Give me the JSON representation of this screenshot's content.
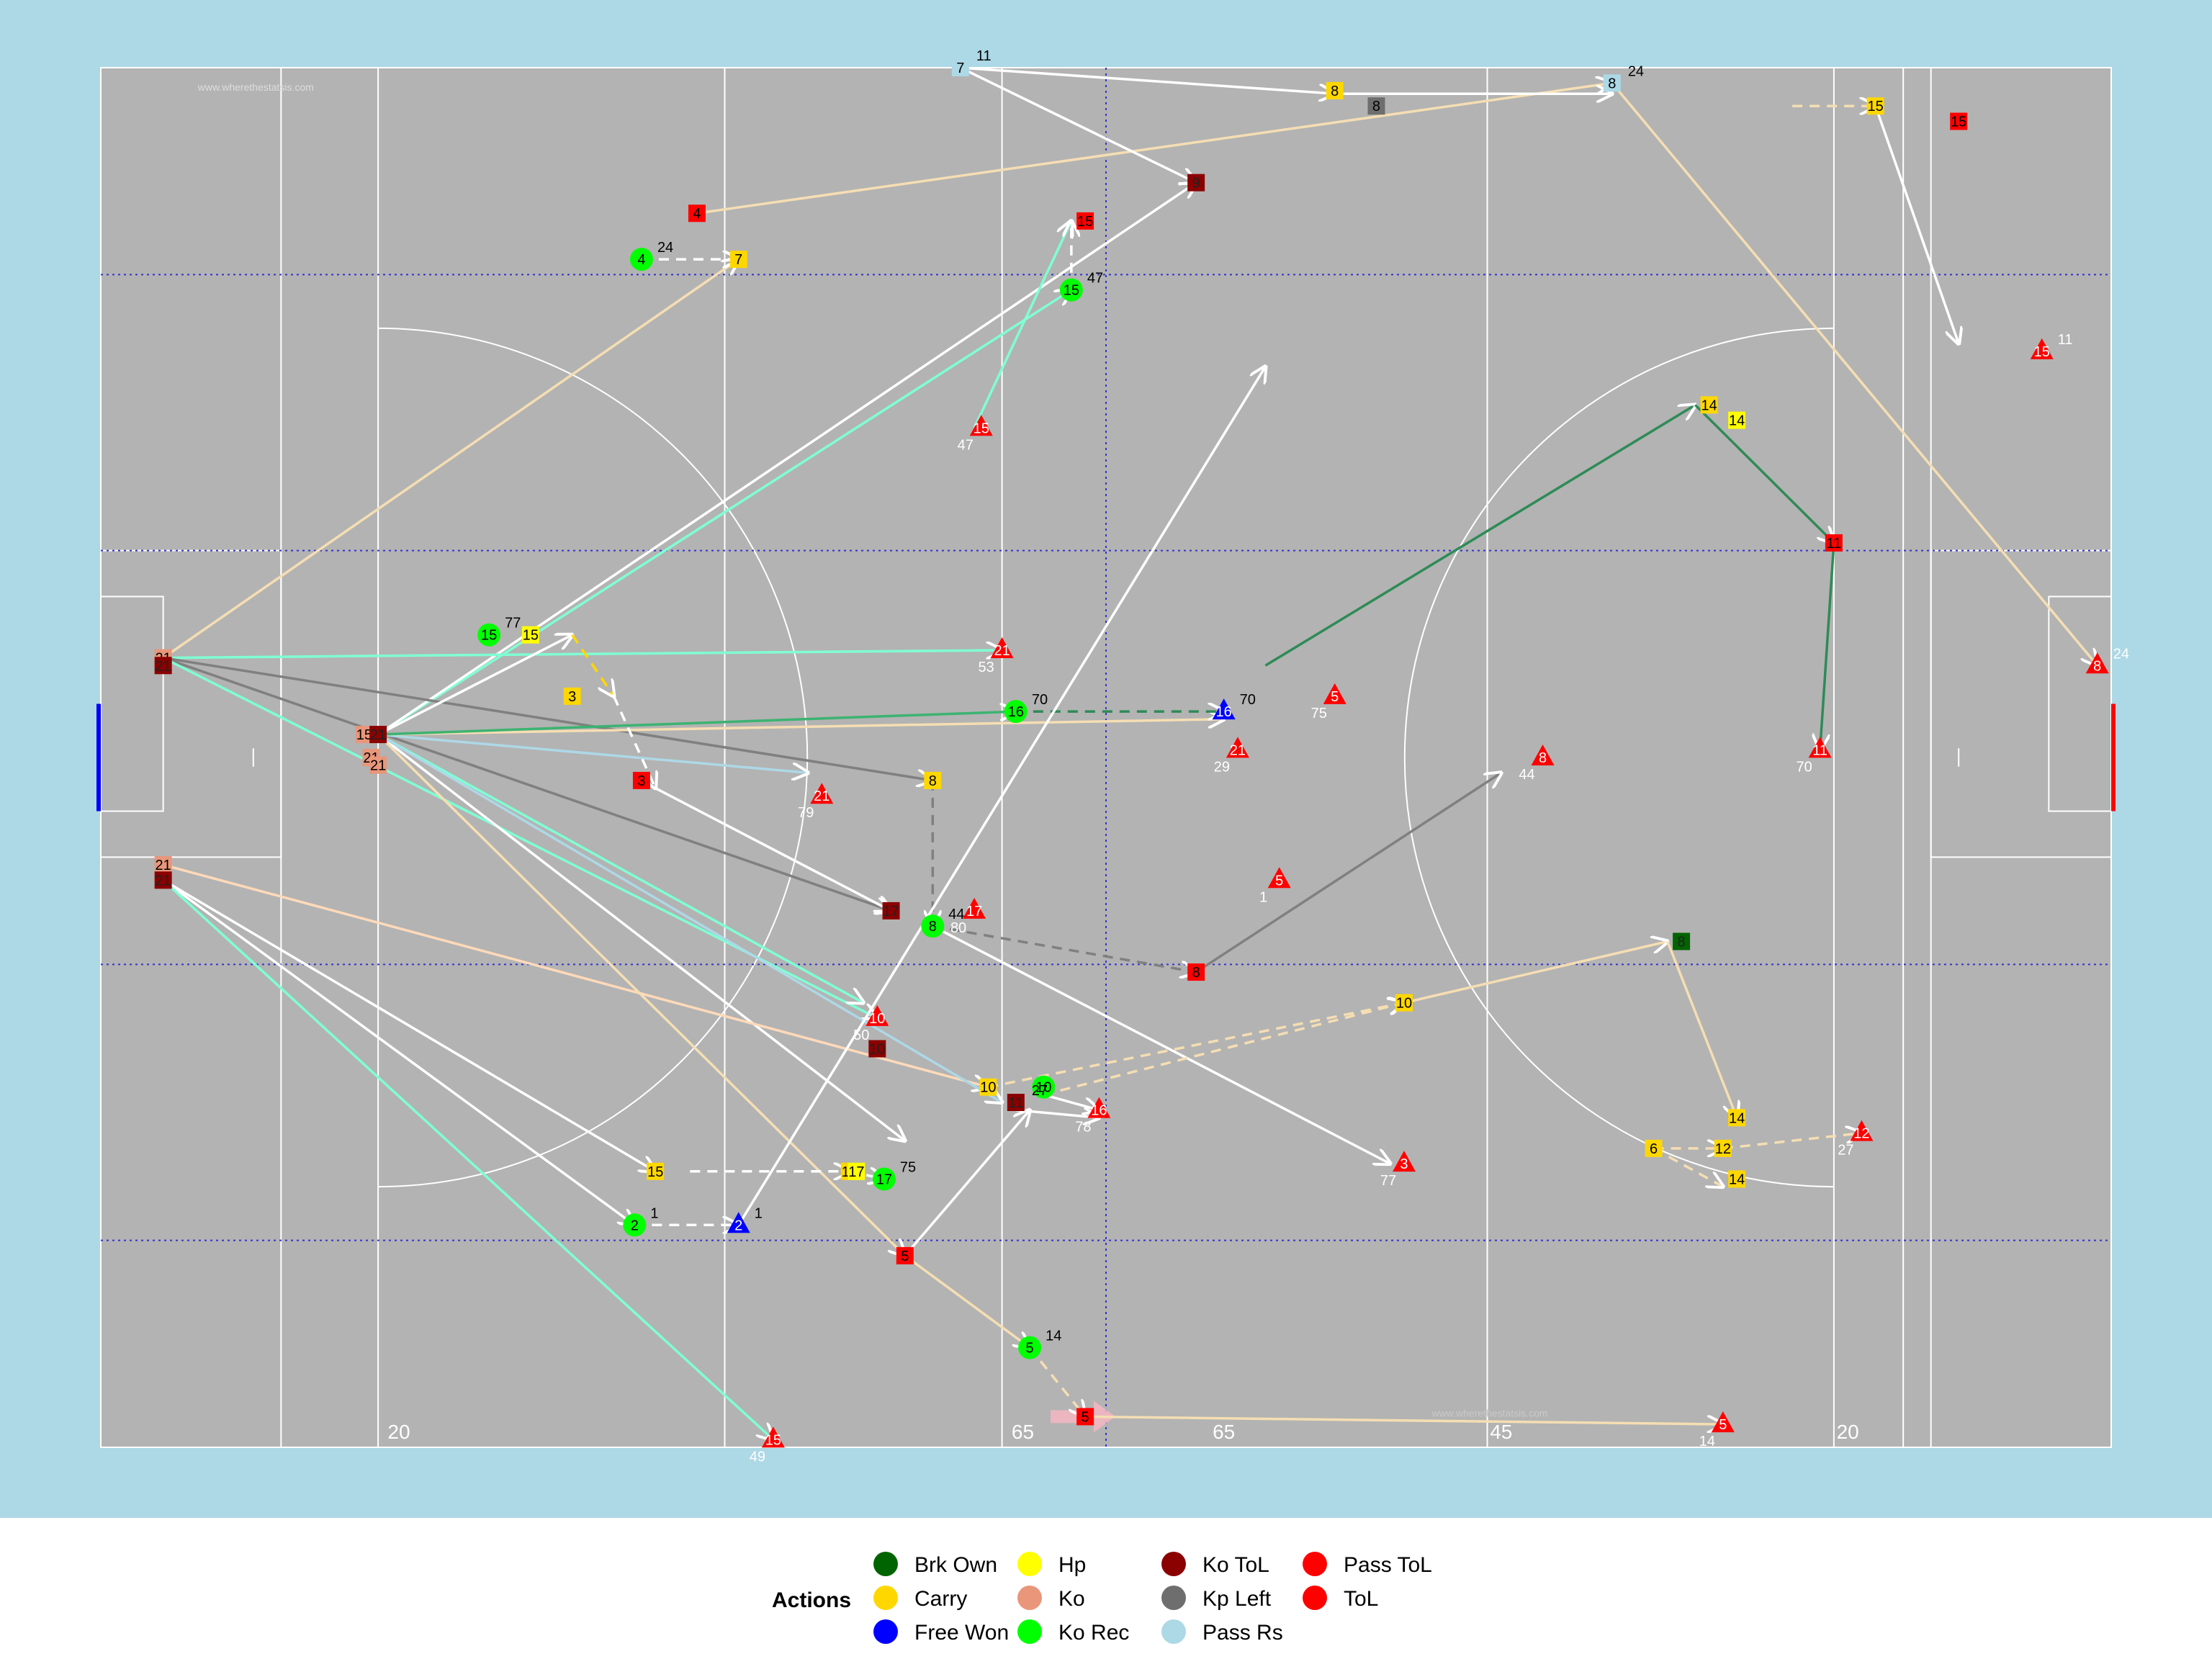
{
  "page": {
    "background": "#ffffff",
    "outer_panel_color": "#add8e6",
    "pitch_color": "#b3b3b3",
    "pitch_line_color": "#ffffff",
    "guide_line_color": "#3333cc",
    "left_goal_color": "#0000ff",
    "right_goal_color": "#ff0000",
    "attack_arrow_color": "#f4b6c2"
  },
  "watermarks": [
    "www.wherethestatsis.com",
    "www.wherethestatsis.com"
  ],
  "chart_data": {
    "type": "scatter",
    "title": "",
    "xlabel": "",
    "ylabel": "",
    "xlim": [
      0,
      145
    ],
    "ylim": [
      0,
      90
    ],
    "direction_of_play": "right",
    "pitch_distance_labels": [
      {
        "x": 21.5,
        "text": "20"
      },
      {
        "x": 66.5,
        "text": "65"
      },
      {
        "x": 81.0,
        "text": "65"
      },
      {
        "x": 101.0,
        "text": "45"
      },
      {
        "x": 126.0,
        "text": "20"
      }
    ],
    "legend": {
      "title": "Actions",
      "position": "bottom",
      "entries": [
        {
          "label": "Brk Own",
          "color": "#006400"
        },
        {
          "label": "Carry",
          "color": "#ffd700"
        },
        {
          "label": "Free Won",
          "color": "#0000ff"
        },
        {
          "label": "Hp",
          "color": "#ffff00"
        },
        {
          "label": "Ko",
          "color": "#e9967a"
        },
        {
          "label": "Ko Rec",
          "color": "#00ff00"
        },
        {
          "label": "Ko ToL",
          "color": "#8b0000"
        },
        {
          "label": "Kp Left",
          "color": "#6e6e6e"
        },
        {
          "label": "Pass Rs",
          "color": "#add8e6"
        },
        {
          "label": "Pass ToL",
          "color": "#ff0000"
        },
        {
          "label": "ToL",
          "color": "#ff0000"
        }
      ]
    },
    "segments": [
      {
        "x1": 4.5,
        "y1": 51.5,
        "x2": 46,
        "y2": 77.5,
        "color": "#f5deb3",
        "dash": false
      },
      {
        "x1": 43,
        "y1": 80.5,
        "x2": 109,
        "y2": 89,
        "color": "#f5deb3",
        "dash": false
      },
      {
        "x1": 62,
        "y1": 90,
        "x2": 89,
        "y2": 88.3,
        "color": "#ffffff",
        "dash": false
      },
      {
        "x1": 62,
        "y1": 90,
        "x2": 79,
        "y2": 82.5,
        "color": "#ffffff",
        "dash": false
      },
      {
        "x1": 89,
        "y1": 88.3,
        "x2": 109,
        "y2": 88.3,
        "color": "#ffffff",
        "dash": false
      },
      {
        "x1": 109,
        "y1": 89,
        "x2": 144,
        "y2": 51,
        "color": "#f5deb3",
        "dash": false
      },
      {
        "x1": 128,
        "y1": 87.5,
        "x2": 134,
        "y2": 72,
        "color": "#ffffff",
        "dash": false
      },
      {
        "x1": 122,
        "y1": 87.5,
        "x2": 128,
        "y2": 87.5,
        "color": "#f5deb3",
        "dash": true
      },
      {
        "x1": 39,
        "y1": 77.5,
        "x2": 46,
        "y2": 77.5,
        "color": "#ffffff",
        "dash": true
      },
      {
        "x1": 20,
        "y1": 46.5,
        "x2": 70,
        "y2": 75.5,
        "color": "#7fffd4",
        "dash": false
      },
      {
        "x1": 20,
        "y1": 46.5,
        "x2": 79,
        "y2": 82.5,
        "color": "#ffffff",
        "dash": false
      },
      {
        "x1": 63,
        "y1": 66.5,
        "x2": 70,
        "y2": 80,
        "color": "#7fffd4",
        "dash": false
      },
      {
        "x1": 70,
        "y1": 75.5,
        "x2": 70,
        "y2": 80,
        "color": "#ffffff",
        "dash": true
      },
      {
        "x1": 4.5,
        "y1": 51.5,
        "x2": 65,
        "y2": 52,
        "color": "#7fffd4",
        "dash": false
      },
      {
        "x1": 4.5,
        "y1": 51.5,
        "x2": 60,
        "y2": 43.5,
        "color": "#808080",
        "dash": false
      },
      {
        "x1": 4.5,
        "y1": 51.5,
        "x2": 57,
        "y2": 35,
        "color": "#808080",
        "dash": false
      },
      {
        "x1": 4.5,
        "y1": 51.5,
        "x2": 56,
        "y2": 28,
        "color": "#7fffd4",
        "dash": false
      },
      {
        "x1": 20,
        "y1": 46.5,
        "x2": 51,
        "y2": 44,
        "color": "#add8e6",
        "dash": false
      },
      {
        "x1": 20,
        "y1": 46.5,
        "x2": 34,
        "y2": 53,
        "color": "#ffffff",
        "dash": false
      },
      {
        "x1": 20,
        "y1": 46.5,
        "x2": 58,
        "y2": 20,
        "color": "#ffffff",
        "dash": false
      },
      {
        "x1": 20,
        "y1": 46.5,
        "x2": 81,
        "y2": 47.5,
        "color": "#f5deb3",
        "dash": false
      },
      {
        "x1": 20,
        "y1": 46.5,
        "x2": 66,
        "y2": 48,
        "color": "#3cb371",
        "dash": false
      },
      {
        "x1": 66,
        "y1": 48,
        "x2": 81,
        "y2": 48,
        "color": "#2e8b57",
        "dash": true
      },
      {
        "x1": 84,
        "y1": 51,
        "x2": 115,
        "y2": 68,
        "color": "#2e8b57",
        "dash": false
      },
      {
        "x1": 115,
        "y1": 68,
        "x2": 125,
        "y2": 59,
        "color": "#2e8b57",
        "dash": false
      },
      {
        "x1": 125,
        "y1": 59,
        "x2": 124,
        "y2": 45.5,
        "color": "#2e8b57",
        "dash": false
      },
      {
        "x1": 34,
        "y1": 53,
        "x2": 37,
        "y2": 49,
        "color": "#ffd700",
        "dash": true
      },
      {
        "x1": 37,
        "y1": 49,
        "x2": 40,
        "y2": 43,
        "color": "#ffffff",
        "dash": true
      },
      {
        "x1": 40,
        "y1": 43,
        "x2": 57,
        "y2": 35,
        "color": "#ffffff",
        "dash": false
      },
      {
        "x1": 60,
        "y1": 43.5,
        "x2": 60,
        "y2": 34,
        "color": "#808080",
        "dash": true
      },
      {
        "x1": 60,
        "y1": 34,
        "x2": 79,
        "y2": 31,
        "color": "#808080",
        "dash": true
      },
      {
        "x1": 79,
        "y1": 31,
        "x2": 101,
        "y2": 44,
        "color": "#808080",
        "dash": false
      },
      {
        "x1": 60,
        "y1": 34,
        "x2": 93,
        "y2": 18.5,
        "color": "#ffffff",
        "dash": false
      },
      {
        "x1": 4.5,
        "y1": 38,
        "x2": 64,
        "y2": 23.5,
        "color": "#ffdab9",
        "dash": false
      },
      {
        "x1": 4.5,
        "y1": 37,
        "x2": 40,
        "y2": 18,
        "color": "#ffffff",
        "dash": false
      },
      {
        "x1": 4.5,
        "y1": 37,
        "x2": 38.5,
        "y2": 14.5,
        "color": "#ffffff",
        "dash": false
      },
      {
        "x1": 4.5,
        "y1": 37,
        "x2": 48.5,
        "y2": 0.5,
        "color": "#7fffd4",
        "dash": false
      },
      {
        "x1": 20,
        "y1": 46.5,
        "x2": 55,
        "y2": 29,
        "color": "#7fffd4",
        "dash": false
      },
      {
        "x1": 20,
        "y1": 46.5,
        "x2": 65,
        "y2": 22.5,
        "color": "#add8e6",
        "dash": false
      },
      {
        "x1": 20,
        "y1": 46.5,
        "x2": 58,
        "y2": 12.5,
        "color": "#f5deb3",
        "dash": false
      },
      {
        "x1": 58,
        "y1": 12.5,
        "x2": 67,
        "y2": 6.5,
        "color": "#f5deb3",
        "dash": false
      },
      {
        "x1": 67,
        "y1": 6.5,
        "x2": 71,
        "y2": 2,
        "color": "#f5deb3",
        "dash": true
      },
      {
        "x1": 71,
        "y1": 2,
        "x2": 117,
        "y2": 1.5,
        "color": "#f5deb3",
        "dash": false
      },
      {
        "x1": 64,
        "y1": 23.5,
        "x2": 94,
        "y2": 29,
        "color": "#f5deb3",
        "dash": true
      },
      {
        "x1": 94,
        "y1": 29,
        "x2": 113,
        "y2": 33,
        "color": "#f5deb3",
        "dash": false
      },
      {
        "x1": 113,
        "y1": 33,
        "x2": 118,
        "y2": 21.5,
        "color": "#f5deb3",
        "dash": false
      },
      {
        "x1": 42.5,
        "y1": 18,
        "x2": 54,
        "y2": 18,
        "color": "#ffffff",
        "dash": true
      },
      {
        "x1": 54,
        "y1": 18,
        "x2": 56.5,
        "y2": 17.5,
        "color": "#ffffff",
        "dash": true
      },
      {
        "x1": 38.5,
        "y1": 14.5,
        "x2": 46,
        "y2": 14.5,
        "color": "#ffffff",
        "dash": true
      },
      {
        "x1": 46,
        "y1": 14.5,
        "x2": 84,
        "y2": 70.5,
        "color": "#ffffff",
        "dash": false
      },
      {
        "x1": 58,
        "y1": 12.5,
        "x2": 67,
        "y2": 22,
        "color": "#ffffff",
        "dash": false
      },
      {
        "x1": 66,
        "y1": 22,
        "x2": 72,
        "y2": 21.5,
        "color": "#ffffff",
        "dash": false
      },
      {
        "x1": 68,
        "y1": 23,
        "x2": 94,
        "y2": 29,
        "color": "#f5deb3",
        "dash": true
      },
      {
        "x1": 112,
        "y1": 19.5,
        "x2": 117,
        "y2": 19.5,
        "color": "#f5deb3",
        "dash": true
      },
      {
        "x1": 112,
        "y1": 19.5,
        "x2": 117,
        "y2": 17,
        "color": "#f5deb3",
        "dash": true
      },
      {
        "x1": 117,
        "y1": 19.5,
        "x2": 127,
        "y2": 20.5,
        "color": "#f5deb3",
        "dash": true
      },
      {
        "x1": 68,
        "y1": 23,
        "x2": 72,
        "y2": 22,
        "color": "#ffffff",
        "dash": false
      }
    ],
    "points": [
      {
        "x": 62,
        "y": 90,
        "action": "Pass Rs",
        "num": "7",
        "label": "11",
        "lc": "#000000",
        "shape": "sq"
      },
      {
        "x": 89,
        "y": 88.5,
        "action": "Carry",
        "num": "8",
        "shape": "sq"
      },
      {
        "x": 92,
        "y": 87.5,
        "action": "Kp Left",
        "num": "8",
        "shape": "sq"
      },
      {
        "x": 109,
        "y": 89,
        "action": "Pass Rs",
        "num": "8",
        "label": "24",
        "lc": "#000000",
        "shape": "sq"
      },
      {
        "x": 128,
        "y": 87.5,
        "action": "Carry",
        "num": "15",
        "shape": "sq"
      },
      {
        "x": 134,
        "y": 86.5,
        "action": "Pass ToL",
        "num": "15",
        "shape": "sq"
      },
      {
        "x": 79,
        "y": 82.5,
        "action": "Ko ToL",
        "num": "9",
        "shape": "sq"
      },
      {
        "x": 43,
        "y": 80.5,
        "action": "Pass ToL",
        "num": "4",
        "shape": "sq"
      },
      {
        "x": 71,
        "y": 80,
        "action": "Pass ToL",
        "num": "15",
        "shape": "sq"
      },
      {
        "x": 39,
        "y": 77.5,
        "action": "Ko Rec",
        "num": "4",
        "label": "24",
        "lc": "#000000",
        "shape": "circ"
      },
      {
        "x": 46,
        "y": 77.5,
        "action": "Carry",
        "num": "7",
        "shape": "sq"
      },
      {
        "x": 70,
        "y": 75.5,
        "action": "Ko Rec",
        "num": "15",
        "label": "47",
        "lc": "#000000",
        "shape": "circ"
      },
      {
        "x": 140,
        "y": 71.5,
        "action": "ToL",
        "num": "15",
        "label": "11",
        "lc": "#ffffff",
        "shape": "tri"
      },
      {
        "x": 63.5,
        "y": 66.5,
        "action": "ToL",
        "num": "15",
        "label": "47",
        "lc": "#ffffff",
        "shape": "tri"
      },
      {
        "x": 116,
        "y": 68,
        "action": "Carry",
        "num": "14",
        "shape": "sq"
      },
      {
        "x": 118,
        "y": 67,
        "action": "Hp",
        "num": "14",
        "shape": "sq"
      },
      {
        "x": 125,
        "y": 59,
        "action": "Pass ToL",
        "num": "11",
        "shape": "sq"
      },
      {
        "x": 28,
        "y": 53,
        "action": "Ko Rec",
        "num": "15",
        "label": "77",
        "lc": "#000000",
        "shape": "circ"
      },
      {
        "x": 31,
        "y": 53,
        "action": "Hp",
        "num": "15",
        "shape": "sq"
      },
      {
        "x": 4.5,
        "y": 51.5,
        "action": "Ko",
        "num": "21",
        "shape": "sq"
      },
      {
        "x": 4.5,
        "y": 51.0,
        "action": "Ko ToL",
        "num": "21",
        "shape": "sq"
      },
      {
        "x": 65,
        "y": 52,
        "action": "ToL",
        "num": "21",
        "label": "53",
        "lc": "#ffffff",
        "shape": "tri"
      },
      {
        "x": 34,
        "y": 49,
        "action": "Carry",
        "num": "3",
        "shape": "sq"
      },
      {
        "x": 144,
        "y": 51,
        "action": "ToL",
        "num": "8",
        "label": "24",
        "lc": "#ffffff",
        "shape": "tri"
      },
      {
        "x": 89,
        "y": 49,
        "action": "ToL",
        "num": "5",
        "label": "75",
        "lc": "#ffffff",
        "shape": "tri"
      },
      {
        "x": 124,
        "y": 45.5,
        "action": "ToL",
        "num": "11",
        "label": "70",
        "lc": "#ffffff",
        "shape": "tri"
      },
      {
        "x": 19,
        "y": 46.5,
        "action": "Ko",
        "num": "15",
        "shape": "sq"
      },
      {
        "x": 20,
        "y": 46.5,
        "action": "Ko ToL",
        "num": "21",
        "shape": "sq"
      },
      {
        "x": 19.5,
        "y": 45,
        "action": "Ko",
        "num": "21",
        "shape": "sq"
      },
      {
        "x": 20,
        "y": 44.5,
        "action": "Ko",
        "num": "21",
        "shape": "sq"
      },
      {
        "x": 66,
        "y": 48,
        "action": "Ko Rec",
        "num": "16",
        "label": "70",
        "lc": "#000000",
        "shape": "circ"
      },
      {
        "x": 81,
        "y": 48,
        "action": "Free Won",
        "num": "16",
        "label": "70",
        "lc": "#000000",
        "shape": "tri"
      },
      {
        "x": 82,
        "y": 45.5,
        "action": "ToL",
        "num": "21",
        "label": "29",
        "lc": "#ffffff",
        "shape": "tri"
      },
      {
        "x": 39,
        "y": 43.5,
        "action": "Pass ToL",
        "num": "3",
        "shape": "sq"
      },
      {
        "x": 60,
        "y": 43.5,
        "action": "Carry",
        "num": "8",
        "shape": "sq"
      },
      {
        "x": 52,
        "y": 42.5,
        "action": "ToL",
        "num": "21",
        "label": "79",
        "lc": "#ffffff",
        "shape": "tri"
      },
      {
        "x": 104,
        "y": 45,
        "action": "ToL",
        "num": "8",
        "label": "44",
        "lc": "#ffffff",
        "shape": "tri"
      },
      {
        "x": 4.5,
        "y": 38,
        "action": "Ko",
        "num": "21",
        "shape": "sq"
      },
      {
        "x": 4.5,
        "y": 37,
        "action": "Ko ToL",
        "num": "21",
        "shape": "sq"
      },
      {
        "x": 85,
        "y": 37,
        "action": "ToL",
        "num": "5",
        "label": "1",
        "lc": "#ffffff",
        "shape": "tri"
      },
      {
        "x": 57,
        "y": 35,
        "action": "Ko ToL",
        "num": "17",
        "shape": "sq"
      },
      {
        "x": 60,
        "y": 34,
        "action": "Ko Rec",
        "num": "8",
        "label": "44",
        "lc": "#000000",
        "shape": "circ"
      },
      {
        "x": 63,
        "y": 35,
        "action": "ToL",
        "num": "17",
        "label": "80",
        "lc": "#ffffff",
        "shape": "tri"
      },
      {
        "x": 79,
        "y": 31,
        "action": "Pass ToL",
        "num": "8",
        "shape": "sq"
      },
      {
        "x": 114,
        "y": 33,
        "action": "Brk Own",
        "num": "8",
        "shape": "sq"
      },
      {
        "x": 56,
        "y": 28,
        "action": "ToL",
        "num": "10",
        "label": "50",
        "lc": "#ffffff",
        "shape": "tri"
      },
      {
        "x": 56,
        "y": 26,
        "action": "Ko ToL",
        "num": "10",
        "shape": "sq"
      },
      {
        "x": 94,
        "y": 29,
        "action": "Carry",
        "num": "10",
        "shape": "sq"
      },
      {
        "x": 64,
        "y": 23.5,
        "action": "Carry",
        "num": "10",
        "shape": "sq"
      },
      {
        "x": 68,
        "y": 23.5,
        "action": "Ko Rec",
        "num": "10",
        "shape": "circ"
      },
      {
        "x": 66,
        "y": 22.5,
        "action": "Ko ToL",
        "num": "11",
        "label": "27",
        "lc": "#000000",
        "shape": "sq"
      },
      {
        "x": 72,
        "y": 22,
        "action": "ToL",
        "num": "16",
        "label": "78",
        "lc": "#ffffff",
        "shape": "tri"
      },
      {
        "x": 118,
        "y": 21.5,
        "action": "Carry",
        "num": "14",
        "shape": "sq"
      },
      {
        "x": 112,
        "y": 19.5,
        "action": "Carry",
        "num": "6",
        "shape": "sq"
      },
      {
        "x": 117,
        "y": 19.5,
        "action": "Carry",
        "num": "12",
        "shape": "sq"
      },
      {
        "x": 118,
        "y": 17.5,
        "action": "Carry",
        "num": "14",
        "shape": "sq"
      },
      {
        "x": 127,
        "y": 20.5,
        "action": "ToL",
        "num": "12",
        "label": "27",
        "lc": "#ffffff",
        "shape": "tri"
      },
      {
        "x": 94,
        "y": 18.5,
        "action": "ToL",
        "num": "3",
        "label": "77",
        "lc": "#ffffff",
        "shape": "tri"
      },
      {
        "x": 40,
        "y": 18,
        "action": "Carry",
        "num": "15",
        "shape": "sq"
      },
      {
        "x": 54,
        "y": 18,
        "action": "Carry",
        "num": "17",
        "shape": "sq"
      },
      {
        "x": 54.5,
        "y": 18,
        "action": "Hp",
        "num": "17",
        "shape": "sq"
      },
      {
        "x": 56.5,
        "y": 17.5,
        "action": "Ko Rec",
        "num": "17",
        "label": "75",
        "lc": "#000000",
        "shape": "circ"
      },
      {
        "x": 38.5,
        "y": 14.5,
        "action": "Ko Rec",
        "num": "2",
        "label": "1",
        "lc": "#000000",
        "shape": "circ"
      },
      {
        "x": 46,
        "y": 14.5,
        "action": "Free Won",
        "num": "2",
        "label": "1",
        "lc": "#000000",
        "shape": "tri"
      },
      {
        "x": 58,
        "y": 12.5,
        "action": "Pass ToL",
        "num": "5",
        "shape": "sq"
      },
      {
        "x": 67,
        "y": 6.5,
        "action": "Ko Rec",
        "num": "5",
        "label": "14",
        "lc": "#000000",
        "shape": "circ"
      },
      {
        "x": 71,
        "y": 2,
        "action": "Pass ToL",
        "num": "5",
        "shape": "sq"
      },
      {
        "x": 117,
        "y": 1.5,
        "action": "ToL",
        "num": "5",
        "label": "14",
        "lc": "#ffffff",
        "shape": "tri"
      },
      {
        "x": 48.5,
        "y": 0.5,
        "action": "ToL",
        "num": "15",
        "label": "49",
        "lc": "#ffffff",
        "shape": "tri"
      }
    ]
  }
}
